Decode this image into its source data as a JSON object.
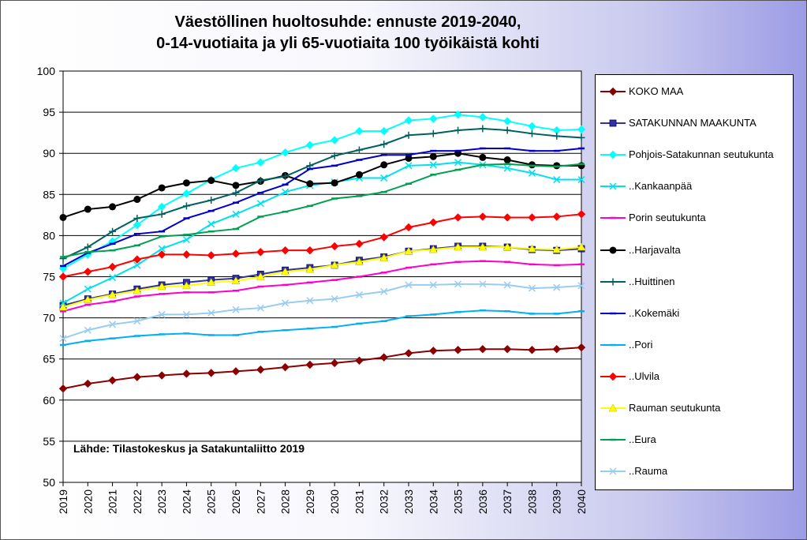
{
  "chart_data": {
    "type": "line",
    "title_line1": "Väestöllinen huoltosuhde: ennuste 2019-2040,",
    "title_line2": "0-14-vuotiaita ja yli 65-vuotiaita 100 työikäistä kohti",
    "source_note": "Lähde: Tilastokeskus ja Satakuntaliitto 2019",
    "xlabel": "",
    "ylabel": "",
    "ylim": [
      50,
      100
    ],
    "yticks": [
      "50",
      "55",
      "60",
      "65",
      "70",
      "75",
      "80",
      "85",
      "90",
      "95",
      "100"
    ],
    "x": [
      "2019",
      "2020",
      "2021",
      "2022",
      "2023",
      "2024",
      "2025",
      "2026",
      "2027",
      "2028",
      "2029",
      "2030",
      "2031",
      "2032",
      "2033",
      "2034",
      "2035",
      "2036",
      "2037",
      "2038",
      "2039",
      "2040"
    ],
    "grid": true,
    "legend_position": "right",
    "series": [
      {
        "name": "KOKO MAA",
        "color": "#8B0000",
        "marker": "diamond",
        "values": [
          61.4,
          62.0,
          62.4,
          62.8,
          63.0,
          63.2,
          63.3,
          63.5,
          63.7,
          64.0,
          64.3,
          64.5,
          64.8,
          65.2,
          65.7,
          66.0,
          66.1,
          66.2,
          66.2,
          66.1,
          66.2,
          66.4
        ]
      },
      {
        "name": "SATAKUNNAN MAAKUNTA",
        "color": "#333399",
        "marker": "square",
        "values": [
          71.5,
          72.3,
          72.9,
          73.5,
          74.0,
          74.3,
          74.6,
          74.8,
          75.3,
          75.8,
          76.1,
          76.4,
          77.0,
          77.4,
          78.1,
          78.4,
          78.7,
          78.7,
          78.6,
          78.3,
          78.2,
          78.4
        ]
      },
      {
        "name": "Pohjois-Satakunnan seutukunta",
        "color": "#00FFFF",
        "marker": "diamond",
        "values": [
          76.0,
          77.7,
          79.3,
          81.3,
          83.5,
          85.1,
          86.8,
          88.2,
          88.9,
          90.1,
          91.0,
          91.6,
          92.7,
          92.7,
          94.0,
          94.2,
          94.7,
          94.4,
          93.9,
          93.3,
          92.8,
          92.9
        ]
      },
      {
        "name": "..Kankaanpää",
        "color": "#00E0F0",
        "marker": "x",
        "values": [
          71.8,
          73.5,
          74.9,
          76.4,
          78.4,
          79.5,
          81.4,
          82.6,
          83.9,
          85.3,
          86.1,
          86.5,
          87.0,
          87.0,
          88.5,
          88.6,
          88.9,
          88.6,
          88.2,
          87.6,
          86.8,
          86.8
        ]
      },
      {
        "name": "Porin seutukunta",
        "color": "#FF00CC",
        "marker": "dash",
        "values": [
          70.8,
          71.6,
          72.0,
          72.6,
          72.9,
          73.1,
          73.1,
          73.3,
          73.8,
          74.0,
          74.3,
          74.6,
          75.0,
          75.5,
          76.1,
          76.5,
          76.8,
          76.9,
          76.8,
          76.5,
          76.4,
          76.5
        ]
      },
      {
        "name": "..Harjavalta",
        "color": "#000000",
        "marker": "circle",
        "values": [
          82.2,
          83.2,
          83.5,
          84.4,
          85.8,
          86.4,
          86.7,
          86.1,
          86.6,
          87.3,
          86.3,
          86.4,
          87.4,
          88.6,
          89.4,
          89.6,
          90.0,
          89.5,
          89.2,
          88.6,
          88.5,
          88.5
        ]
      },
      {
        "name": "..Huittinen",
        "color": "#006060",
        "marker": "plus",
        "values": [
          77.2,
          78.6,
          80.5,
          82.1,
          82.6,
          83.6,
          84.3,
          85.2,
          86.7,
          87.2,
          88.5,
          89.7,
          90.4,
          91.1,
          92.2,
          92.4,
          92.8,
          93.0,
          92.8,
          92.4,
          92.1,
          91.9
        ]
      },
      {
        "name": "..Kokemäki",
        "color": "#0000CC",
        "marker": "dash",
        "values": [
          76.3,
          77.9,
          79.0,
          80.2,
          80.5,
          82.1,
          83.0,
          84.0,
          85.2,
          86.2,
          88.1,
          88.5,
          89.2,
          89.8,
          89.8,
          90.3,
          90.3,
          90.6,
          90.6,
          90.3,
          90.3,
          90.6
        ]
      },
      {
        "name": "..Pori",
        "color": "#00B0F0",
        "marker": "dash",
        "values": [
          66.7,
          67.2,
          67.5,
          67.8,
          68.0,
          68.1,
          67.9,
          67.9,
          68.3,
          68.5,
          68.7,
          68.9,
          69.3,
          69.6,
          70.2,
          70.4,
          70.7,
          70.9,
          70.8,
          70.5,
          70.5,
          70.8
        ]
      },
      {
        "name": "..Ulvila",
        "color": "#FF0000",
        "marker": "diamond",
        "values": [
          75.0,
          75.6,
          76.2,
          77.1,
          77.7,
          77.7,
          77.6,
          77.8,
          78.0,
          78.2,
          78.2,
          78.7,
          79.0,
          79.8,
          81.0,
          81.6,
          82.2,
          82.3,
          82.2,
          82.2,
          82.3,
          82.6
        ]
      },
      {
        "name": "Rauman seutukunta",
        "color": "#FFFF00",
        "marker": "triangle",
        "values": [
          71.3,
          72.2,
          72.8,
          73.3,
          73.8,
          73.9,
          74.3,
          74.5,
          75.0,
          75.6,
          75.9,
          76.4,
          76.8,
          77.3,
          78.1,
          78.3,
          78.6,
          78.6,
          78.6,
          78.4,
          78.3,
          78.6
        ]
      },
      {
        "name": "..Eura",
        "color": "#00A050",
        "marker": "dash",
        "values": [
          77.4,
          78.0,
          78.2,
          78.8,
          79.9,
          80.1,
          80.5,
          80.8,
          82.3,
          82.9,
          83.6,
          84.5,
          84.8,
          85.3,
          86.3,
          87.4,
          88.0,
          88.6,
          88.7,
          88.5,
          88.4,
          88.7
        ]
      },
      {
        "name": "..Rauma",
        "color": "#99CCEE",
        "marker": "x",
        "values": [
          67.5,
          68.5,
          69.2,
          69.6,
          70.4,
          70.4,
          70.6,
          71.0,
          71.2,
          71.8,
          72.1,
          72.3,
          72.8,
          73.2,
          74.0,
          74.0,
          74.1,
          74.1,
          74.0,
          73.6,
          73.7,
          73.9
        ]
      }
    ]
  }
}
